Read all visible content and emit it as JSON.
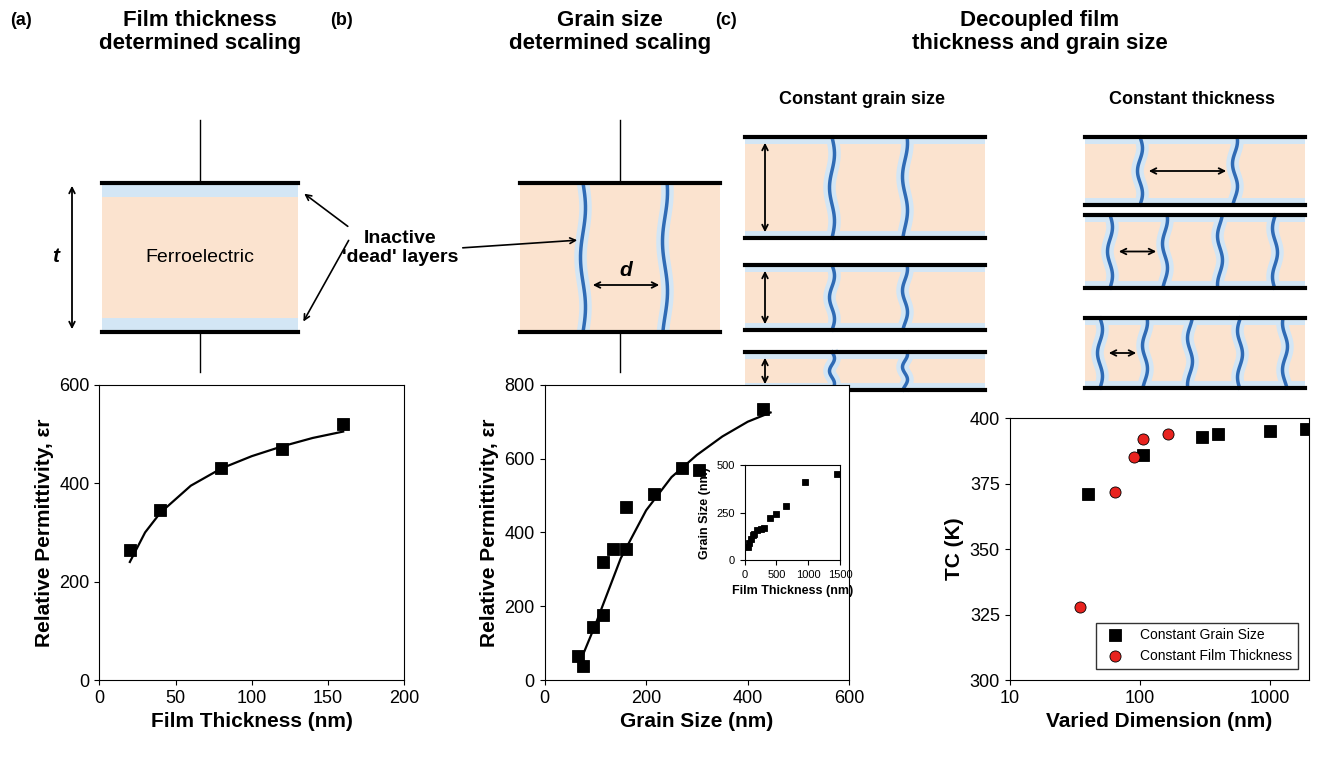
{
  "panels": [
    {
      "label": "(a)",
      "title": "Film thickness\ndetermined scaling",
      "diagram": {
        "fill_text": "Ferroelectric",
        "dimension": "t",
        "annotation": "Inactive\n'dead' layers"
      }
    },
    {
      "label": "(b)",
      "title": "Grain size\ndetermined scaling",
      "diagram": {
        "dimension": "d"
      }
    },
    {
      "label": "(c)",
      "title": "Decoupled film\nthickness and grain size",
      "diagram": {
        "left_heading": "Constant grain size",
        "right_heading": "Constant thickness"
      }
    }
  ],
  "chart_data": [
    {
      "type": "scatter",
      "xlabel": "Film Thickness (nm)",
      "ylabel": "Relative Permittivity, εr",
      "xlim": [
        0,
        200
      ],
      "xticks": [
        0,
        50,
        100,
        150,
        200
      ],
      "ylim": [
        0,
        600
      ],
      "yticks": [
        0,
        200,
        400,
        600
      ],
      "series": [
        {
          "type": "scatter",
          "marker": "square",
          "color": "#000000",
          "x": [
            20,
            40,
            80,
            120,
            160
          ],
          "values": [
            265,
            345,
            430,
            470,
            520
          ]
        },
        {
          "type": "line",
          "color": "#000000",
          "x": [
            20,
            30,
            40,
            60,
            80,
            100,
            120,
            140,
            160
          ],
          "values": [
            240,
            300,
            340,
            395,
            430,
            455,
            475,
            492,
            505
          ]
        }
      ]
    },
    {
      "type": "scatter",
      "xlabel": "Grain Size (nm)",
      "ylabel": "Relative Permittivity, εr",
      "xlim": [
        0,
        600
      ],
      "xticks": [
        0,
        200,
        400,
        600
      ],
      "ylim": [
        0,
        800
      ],
      "yticks": [
        0,
        200,
        400,
        600,
        800
      ],
      "series": [
        {
          "type": "scatter",
          "marker": "square",
          "color": "#000000",
          "x": [
            65,
            75,
            95,
            115,
            115,
            135,
            160,
            160,
            215,
            270,
            305,
            430
          ],
          "values": [
            65,
            38,
            145,
            175,
            320,
            355,
            355,
            470,
            505,
            575,
            570,
            735
          ]
        },
        {
          "type": "line",
          "color": "#000000",
          "x": [
            70,
            100,
            150,
            200,
            250,
            300,
            350,
            400,
            445
          ],
          "values": [
            50,
            150,
            330,
            460,
            550,
            610,
            660,
            700,
            725
          ]
        }
      ],
      "inset": {
        "type": "scatter",
        "xlabel": "Film Thickness (nm)",
        "ylabel": "Grain Size (nm)",
        "xlim": [
          0,
          1500
        ],
        "xticks": [
          0,
          500,
          1000,
          1500
        ],
        "ylim": [
          0,
          500
        ],
        "yticks": [
          0,
          250,
          500
        ],
        "series": [
          {
            "type": "scatter",
            "marker": "square",
            "color": "#000000",
            "x": [
              50,
              75,
              100,
              125,
              150,
              200,
              250,
              300,
              400,
              500,
              650,
              950,
              1450
            ],
            "values": [
              70,
              90,
              110,
              130,
              140,
              160,
              165,
              170,
              220,
              245,
              285,
              410,
              455
            ]
          }
        ]
      }
    },
    {
      "type": "scatter",
      "xlabel": "Varied Dimension (nm)",
      "ylabel": "TC (K)",
      "log": "x",
      "xlim": [
        10,
        2000
      ],
      "xticks": [
        10,
        100,
        1000
      ],
      "ylim": [
        300,
        400
      ],
      "yticks": [
        300,
        325,
        350,
        375,
        400
      ],
      "legend": "lower right",
      "series": [
        {
          "name": "Constant Grain Size",
          "type": "scatter",
          "marker": "square",
          "color": "#000000",
          "x": [
            40,
            105,
            300,
            400,
            1000,
            1900
          ],
          "values": [
            371,
            386,
            393,
            394,
            395,
            396
          ]
        },
        {
          "name": "Constant Film Thickness",
          "type": "scatter",
          "marker": "circle",
          "color": "#e8231f",
          "x": [
            35,
            65,
            90,
            105,
            165
          ],
          "values": [
            328,
            372,
            385,
            392,
            394
          ]
        }
      ]
    }
  ]
}
